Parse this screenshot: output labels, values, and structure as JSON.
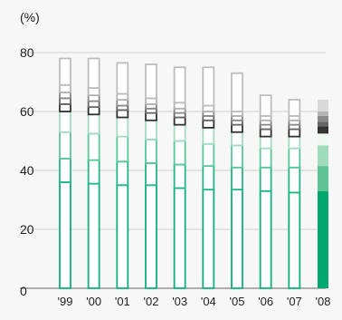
{
  "chart_data": {
    "type": "bar",
    "stacked": true,
    "unit_label": "(%)",
    "ylim": [
      0,
      80
    ],
    "yticks": [
      0,
      20,
      40,
      60,
      80
    ],
    "grid": true,
    "categories": [
      "'99",
      "'00",
      "'01",
      "'02",
      "'03",
      "'04",
      "'05",
      "'06",
      "'07",
      "'08"
    ],
    "highlight_category": "'08",
    "series": [
      {
        "values": [
          36,
          35.5,
          35,
          35,
          34,
          33.5,
          33.5,
          33,
          32.5,
          33
        ],
        "color": "#00a870",
        "outline_color": "#10b07a"
      },
      {
        "values": [
          8,
          8,
          8,
          7.5,
          8,
          8,
          7.5,
          8,
          8.5,
          8.5
        ],
        "color": "#5ec496",
        "outline_color": "#22b884"
      },
      {
        "values": [
          9,
          9,
          8.5,
          8,
          8,
          7.5,
          7.5,
          6.5,
          6.5,
          7
        ],
        "color": "#9fdcbc",
        "outline_color": "#57c79a"
      },
      {
        "values": [
          7,
          6.5,
          6.5,
          6.5,
          5.5,
          5.5,
          4.5,
          4,
          4,
          4
        ],
        "color": "#eef8f2",
        "outline_color": "#a3dbbf"
      },
      {
        "values": [
          2.5,
          2.5,
          2.5,
          2.5,
          2.5,
          2.5,
          2.5,
          2.5,
          2.5,
          2.5
        ],
        "color": "#333333",
        "outline_color": "#333333"
      },
      {
        "values": [
          2,
          2,
          1.5,
          1.5,
          1.5,
          1.5,
          1.5,
          1.5,
          1.5,
          1.5
        ],
        "color": "#666666",
        "outline_color": "#666666"
      },
      {
        "values": [
          2,
          2,
          2,
          1.5,
          1.5,
          1.5,
          1.5,
          1.5,
          1.5,
          2
        ],
        "color": "#8a8a8a",
        "outline_color": "#8a8a8a"
      },
      {
        "values": [
          2.5,
          2.5,
          2,
          2,
          2,
          2,
          1.5,
          1.5,
          1.5,
          1.5
        ],
        "color": "#b4b4b4",
        "outline_color": "#b4b4b4"
      },
      {
        "values": [
          9,
          10,
          10.5,
          11.5,
          12,
          13,
          13,
          7,
          5.5,
          4
        ],
        "color": "#d9d9d9",
        "outline_color": "#bdbdbd"
      }
    ]
  }
}
